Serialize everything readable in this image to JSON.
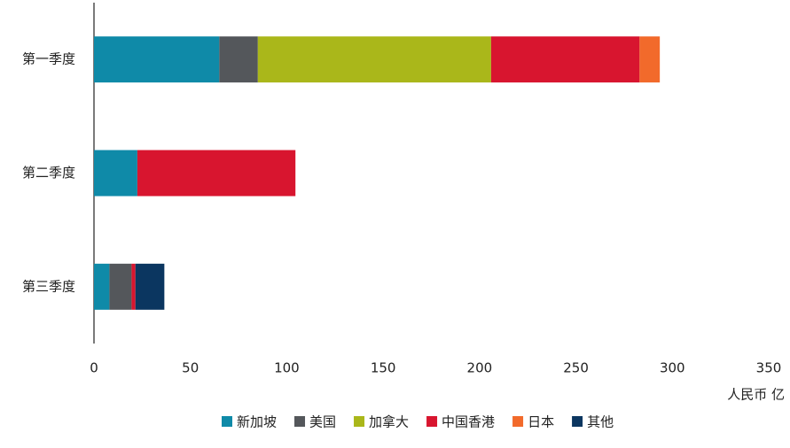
{
  "chart_data": {
    "type": "stacked_barh",
    "categories": [
      "第一季度",
      "第二季度",
      "第三季度"
    ],
    "series": [
      {
        "name": "新加坡",
        "color": "#0f8aa8",
        "values": [
          65,
          22.5,
          8
        ]
      },
      {
        "name": "美国",
        "color": "#54575b",
        "values": [
          20,
          0,
          11.5
        ]
      },
      {
        "name": "加拿大",
        "color": "#aab71a",
        "values": [
          121,
          0,
          0
        ]
      },
      {
        "name": "中国香港",
        "color": "#d8152f",
        "values": [
          77,
          82,
          2
        ]
      },
      {
        "name": "日本",
        "color": "#f26a2b",
        "values": [
          10.5,
          0,
          0
        ]
      },
      {
        "name": "其他",
        "color": "#0b3660",
        "values": [
          0,
          0,
          15
        ]
      }
    ],
    "xlabel": "人民币 亿",
    "xlim": [
      0,
      350
    ],
    "xticks": [
      0,
      50,
      100,
      150,
      200,
      250,
      300,
      350
    ],
    "legend": "bottom"
  }
}
